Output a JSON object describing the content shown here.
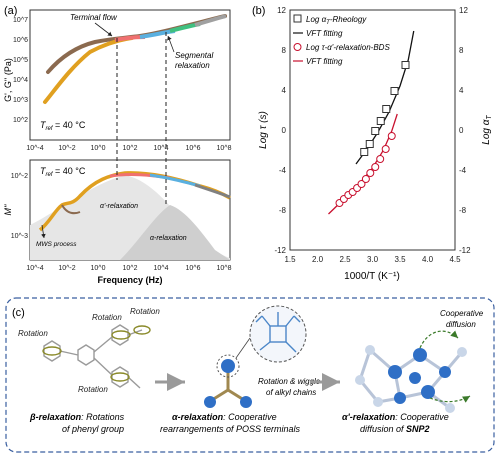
{
  "panel_a": {
    "label": "(a)",
    "top": {
      "ylabel": "G', G'' (Pa)",
      "annotations": {
        "terminal_flow": "Terminal flow",
        "segmental_1": "Segmental",
        "segmental_2": "relaxation",
        "tref": "T",
        "tref_sub": "ref",
        "tref_val": " = 40 °C"
      },
      "y_ticks": [
        "10^7",
        "10^6",
        "10^5",
        "10^4",
        "10^3",
        "10^2"
      ]
    },
    "bottom": {
      "ylabel": "M''",
      "annotations": {
        "tref": "T",
        "tref_sub": "ref",
        "tref_val": " = 40 °C",
        "alpha_prime": "α'-relaxation",
        "alpha": "α-relaxation",
        "mws": "MWS process"
      },
      "y_ticks": [
        "10^-2",
        "10^-3"
      ]
    },
    "x_ticks": [
      "10^-4",
      "10^-2",
      "10^0",
      "10^2",
      "10^4",
      "10^6",
      "10^8"
    ],
    "xlabel": "Frequency (Hz)"
  },
  "panel_b": {
    "label": "(b)",
    "legend": {
      "item1": "Log α",
      "item1_sub": "T",
      "item1_rest": "-Rheology",
      "item2": "VFT fitting",
      "item3": "Log τ-α'-relaxation-BDS",
      "item4": "VFT fitting"
    },
    "ylabel_left": "Log τ (s)",
    "ylabel_right": "Log α",
    "ylabel_right_sub": "T",
    "xlabel": "1000/T (K⁻¹)",
    "x_ticks": [
      "1.5",
      "2.0",
      "2.5",
      "3.0",
      "3.5",
      "4.0",
      "4.5"
    ],
    "y_ticks_left": [
      "12",
      "8",
      "4",
      "0",
      "-4",
      "-8",
      "-12"
    ],
    "y_ticks_right": [
      "12",
      "8",
      "4",
      "0",
      "-4",
      "-8",
      "-12"
    ]
  },
  "chart_data": {
    "type": "scatter",
    "xlim": [
      1.5,
      4.5
    ],
    "ylim": [
      -12,
      12
    ],
    "series": [
      {
        "name": "Log αT-Rheology",
        "marker": "square",
        "color": "#333333",
        "x": [
          2.85,
          2.95,
          3.05,
          3.15,
          3.25,
          3.4,
          3.6
        ],
        "y": [
          -2.2,
          -1.4,
          -0.1,
          0.9,
          2.1,
          3.9,
          6.5
        ]
      },
      {
        "name": "Log τ-α'-relaxation-BDS",
        "marker": "circle",
        "color": "#c8102e",
        "x": [
          2.4,
          2.48,
          2.56,
          2.64,
          2.72,
          2.8,
          2.88,
          2.96,
          3.05,
          3.14,
          3.24,
          3.35
        ],
        "y": [
          -7.3,
          -6.9,
          -6.5,
          -6.2,
          -5.8,
          -5.4,
          -4.9,
          -4.3,
          -3.7,
          -2.9,
          -1.9,
          -0.6
        ]
      },
      {
        "name": "VFT fitting",
        "type": "line",
        "color": "#111111",
        "x": [
          2.7,
          2.9,
          3.1,
          3.3,
          3.5,
          3.65,
          3.75
        ],
        "y": [
          -3.4,
          -1.9,
          -0.2,
          1.8,
          4.4,
          7.0,
          9.9
        ]
      },
      {
        "name": "VFT fitting",
        "type": "line",
        "color": "#c8102e",
        "x": [
          2.2,
          2.5,
          2.8,
          3.0,
          3.2,
          3.35,
          3.45
        ],
        "y": [
          -8.4,
          -6.8,
          -5.1,
          -3.8,
          -2.0,
          -0.1,
          1.6
        ]
      }
    ]
  },
  "panel_c": {
    "label": "(c)",
    "rotation": "Rotation",
    "beta_title": "β-relaxation",
    "beta_text_1": ": Rotations",
    "beta_text_2": "of phenyl group",
    "alpha_title": "α-relaxation",
    "alpha_text_1": ": Cooperative",
    "alpha_text_2": "rearrangements of  POSS terminals",
    "wiggle_1": "Rotation & wiggle",
    "wiggle_2": "of alkyl chains",
    "alphap_title": "α'-relaxation",
    "alphap_text_1": ": Cooperative",
    "alphap_text_2": "diffusion of ",
    "alphap_bold": "SNP2",
    "coop_1": "Cooperative",
    "coop_2": "diffusion"
  },
  "colors": {
    "red": "#c8102e",
    "blue": "#2f6fc6",
    "olive": "#8a8a2a",
    "dash_border": "#3a5fa0"
  }
}
